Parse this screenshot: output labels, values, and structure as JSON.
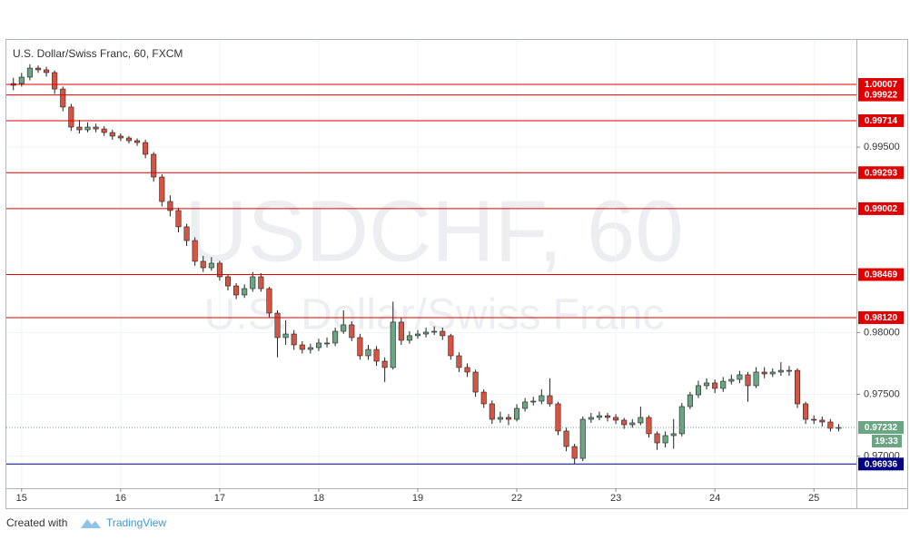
{
  "chart_data": {
    "type": "candlestick",
    "title": "U.S. Dollar/Swiss Franc, 60, FXCM",
    "watermark": [
      "USDCHF, 60",
      "U.S. Dollar/Swiss Franc"
    ],
    "x": [
      -2,
      0,
      2,
      4,
      6,
      8,
      10,
      12,
      14,
      16,
      18,
      20,
      22,
      24,
      26,
      28,
      30,
      32,
      34,
      36,
      38,
      40,
      42,
      44,
      46,
      48,
      50,
      52,
      54,
      56,
      58,
      60,
      62,
      64,
      66,
      68,
      70,
      72,
      74,
      76,
      78,
      80,
      82,
      84,
      86,
      88,
      90,
      92,
      94,
      96,
      98,
      100,
      102,
      104,
      106,
      108,
      110,
      112,
      114,
      116,
      118,
      120,
      122,
      124,
      126,
      128,
      130,
      132,
      134,
      136,
      138,
      140,
      142,
      144,
      146,
      148,
      150,
      152,
      154,
      156,
      158,
      160,
      162,
      164,
      166,
      168,
      170,
      172,
      174,
      176,
      178,
      180,
      182,
      184,
      186,
      188,
      190,
      192,
      194,
      196,
      198
    ],
    "series": [
      {
        "up_color": "#6ba583",
        "down_color": "#d75442",
        "wick_color": "#222222",
        "open": [
          1.0,
          1.00014,
          1.00066,
          1.00139,
          1.00125,
          1.00103,
          0.9997,
          0.99824,
          0.99662,
          0.9964,
          0.99662,
          0.99647,
          0.99618,
          0.99589,
          0.99574,
          0.99552,
          0.99537,
          0.99442,
          0.99258,
          0.9906,
          0.98987,
          0.98855,
          0.98744,
          0.98576,
          0.98524,
          0.98561,
          0.98451,
          0.98377,
          0.98304,
          0.98355,
          0.98451,
          0.98355,
          0.98157,
          0.97959,
          0.97988,
          0.979,
          0.97863,
          0.97878,
          0.97915,
          0.97915,
          0.9801,
          0.98062,
          0.97959,
          0.97812,
          0.97863,
          0.97768,
          0.97717,
          0.98084,
          0.97937,
          0.97974,
          0.97988,
          0.98003,
          0.9801,
          0.97974,
          0.97812,
          0.97717,
          0.9768,
          0.97518,
          0.97423,
          0.97298,
          0.97313,
          0.97298,
          0.97386,
          0.97438,
          0.97445,
          0.97489,
          0.97423,
          0.97203,
          0.97078,
          0.96982,
          0.97298,
          0.97313,
          0.97327,
          0.97313,
          0.97291,
          0.97254,
          0.97269,
          0.97313,
          0.97181,
          0.97107,
          0.97166,
          0.97181,
          0.97401,
          0.97496,
          0.9757,
          0.97592,
          0.97548,
          0.97606,
          0.97621,
          0.97658,
          0.9757,
          0.9768,
          0.97665,
          0.9768,
          0.97694,
          0.97694,
          0.97423,
          0.97298,
          0.97291,
          0.97276,
          0.97225
        ],
        "high": [
          1.0006,
          1.001,
          1.0017,
          1.0016,
          1.0015,
          1.0012,
          0.9999,
          0.9985,
          0.9972,
          0.997,
          0.9969,
          0.9967,
          0.9964,
          0.9961,
          0.9959,
          0.9957,
          0.9956,
          0.9946,
          0.9928,
          0.9911,
          0.9901,
          0.9888,
          0.9877,
          0.9862,
          0.9861,
          0.9858,
          0.9847,
          0.984,
          0.9839,
          0.9849,
          0.9848,
          0.9837,
          0.9818,
          0.981,
          0.9802,
          0.9793,
          0.9791,
          0.9795,
          0.9796,
          0.9804,
          0.9818,
          0.9809,
          0.9799,
          0.979,
          0.9789,
          0.978,
          0.9825,
          0.9812,
          0.9801,
          0.9802,
          0.9804,
          0.9805,
          0.9804,
          0.9799,
          0.9784,
          0.9775,
          0.977,
          0.9754,
          0.9745,
          0.9736,
          0.9734,
          0.9742,
          0.9747,
          0.9748,
          0.9754,
          0.9763,
          0.9744,
          0.9723,
          0.971,
          0.9732,
          0.9735,
          0.9736,
          0.9735,
          0.9734,
          0.9731,
          0.973,
          0.974,
          0.9733,
          0.972,
          0.972,
          0.973,
          0.9743,
          0.9752,
          0.9761,
          0.9763,
          0.9762,
          0.9764,
          0.9766,
          0.9769,
          0.9768,
          0.9772,
          0.9772,
          0.9771,
          0.9776,
          0.9773,
          0.9771,
          0.9744,
          0.9733,
          0.9732,
          0.973,
          0.9726
        ],
        "low": [
          0.9996,
          0.9999,
          1.0004,
          1.001,
          1.0007,
          0.9993,
          0.9979,
          0.9963,
          0.9961,
          0.9962,
          0.9962,
          0.9959,
          0.9956,
          0.9955,
          0.9953,
          0.9951,
          0.9941,
          0.9922,
          0.9902,
          0.9894,
          0.9881,
          0.987,
          0.9854,
          0.9849,
          0.985,
          0.9842,
          0.9834,
          0.9827,
          0.9828,
          0.9833,
          0.9833,
          0.9812,
          0.978,
          0.979,
          0.9786,
          0.9783,
          0.9783,
          0.9785,
          0.9788,
          0.9789,
          0.9799,
          0.9793,
          0.9778,
          0.9778,
          0.9773,
          0.976,
          0.977,
          0.979,
          0.9791,
          0.9795,
          0.9796,
          0.9798,
          0.9794,
          0.9778,
          0.9768,
          0.9764,
          0.9748,
          0.9739,
          0.9726,
          0.9727,
          0.9725,
          0.9728,
          0.9736,
          0.9741,
          0.9742,
          0.974,
          0.9717,
          0.9704,
          0.96936,
          0.9696,
          0.9727,
          0.9729,
          0.9728,
          0.9726,
          0.9722,
          0.9723,
          0.9725,
          0.9715,
          0.9705,
          0.9707,
          0.9706,
          0.9716,
          0.9738,
          0.9747,
          0.9754,
          0.9751,
          0.9752,
          0.9758,
          0.9759,
          0.9744,
          0.9755,
          0.9763,
          0.9764,
          0.9765,
          0.9765,
          0.9739,
          0.9726,
          0.9726,
          0.9724,
          0.972,
          0.972
        ],
        "close": [
          1.00014,
          1.00066,
          1.00139,
          1.00125,
          1.00103,
          0.9997,
          0.99824,
          0.99662,
          0.9964,
          0.99662,
          0.99647,
          0.99618,
          0.99589,
          0.99574,
          0.99552,
          0.99537,
          0.99442,
          0.99258,
          0.9906,
          0.98987,
          0.98855,
          0.98744,
          0.98576,
          0.98524,
          0.98561,
          0.98451,
          0.98377,
          0.98304,
          0.98355,
          0.98451,
          0.98355,
          0.98157,
          0.97959,
          0.97988,
          0.979,
          0.97863,
          0.97878,
          0.97915,
          0.97915,
          0.9801,
          0.98062,
          0.97959,
          0.97812,
          0.97863,
          0.97768,
          0.97717,
          0.98084,
          0.97937,
          0.97974,
          0.97988,
          0.98003,
          0.9801,
          0.97974,
          0.97812,
          0.97717,
          0.9768,
          0.97518,
          0.97423,
          0.97298,
          0.97313,
          0.97298,
          0.97386,
          0.97438,
          0.97445,
          0.97489,
          0.97423,
          0.97203,
          0.97078,
          0.96982,
          0.97298,
          0.97313,
          0.97327,
          0.97313,
          0.97291,
          0.97254,
          0.97269,
          0.97313,
          0.97181,
          0.97107,
          0.97166,
          0.97181,
          0.97401,
          0.97496,
          0.9757,
          0.97592,
          0.97548,
          0.97606,
          0.97621,
          0.97658,
          0.9757,
          0.9768,
          0.97665,
          0.9768,
          0.97694,
          0.97694,
          0.97423,
          0.97298,
          0.97291,
          0.97276,
          0.97225,
          0.97232
        ]
      }
    ],
    "xlim": [
      -3.7,
      202.3
    ],
    "xticks": [
      {
        "value": 0,
        "label": "15"
      },
      {
        "value": 24,
        "label": "16"
      },
      {
        "value": 48,
        "label": "17"
      },
      {
        "value": 72,
        "label": "18"
      },
      {
        "value": 96,
        "label": "19"
      },
      {
        "value": 120,
        "label": "22"
      },
      {
        "value": 144,
        "label": "23"
      },
      {
        "value": 168,
        "label": "24"
      },
      {
        "value": 192,
        "label": "25"
      }
    ],
    "ylim": [
      0.9674,
      1.00367
    ],
    "yticks": [
      {
        "value": 0.97,
        "label": "0.97000"
      },
      {
        "value": 0.975,
        "label": "0.97500"
      },
      {
        "value": 0.98,
        "label": "0.98000"
      },
      {
        "value": 0.995,
        "label": "0.99500"
      }
    ],
    "grid": true,
    "levels": [
      1.00007,
      0.99922,
      0.99714,
      0.99293,
      0.99002,
      0.98469,
      {
        "value": 0.9812,
        "label": "0.98120"
      }
    ],
    "level_color": "#e00000",
    "support": 0.96936,
    "support_color": "#000080",
    "last_price": 0.97232,
    "last_color": "#6ba583",
    "countdown": "19:33"
  },
  "footer": {
    "prefix": "Created with",
    "brand": "TradingView"
  }
}
